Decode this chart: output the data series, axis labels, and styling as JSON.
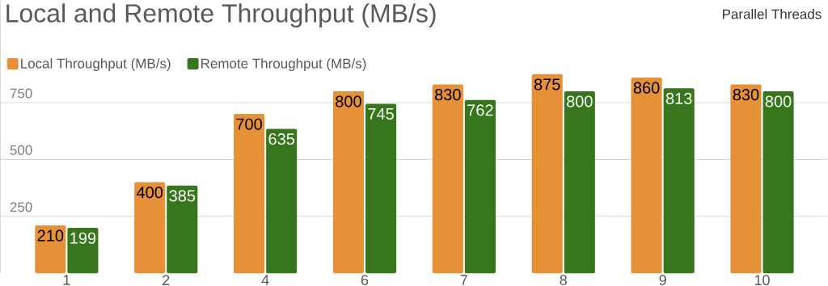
{
  "chart_data": {
    "type": "bar",
    "title": "Local and Remote Throughput (MB/s)",
    "xlabel": "Parallel Threads",
    "categories": [
      "1",
      "2",
      "4",
      "6",
      "7",
      "8",
      "9",
      "10"
    ],
    "series": [
      {
        "name": "Local Throughput (MB/s)",
        "color": "#e69138",
        "values": [
          210,
          400,
          700,
          800,
          830,
          875,
          860,
          830
        ]
      },
      {
        "name": "Remote Throughput (MB/s)",
        "color": "#38761d",
        "values": [
          199,
          385,
          635,
          745,
          762,
          800,
          813,
          800
        ]
      }
    ],
    "ylim": [
      0,
      1200
    ],
    "yticks": [
      250,
      500,
      750
    ],
    "grid": "y",
    "legend": "top left",
    "data_labels": true
  }
}
